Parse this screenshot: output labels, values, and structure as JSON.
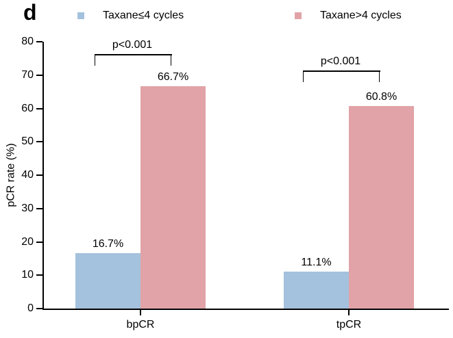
{
  "panel_label": "d",
  "chart_data": {
    "type": "bar",
    "title": "",
    "categories": [
      "bpCR",
      "tpCR"
    ],
    "series": [
      {
        "name": "Taxane≤4 cycles",
        "color": "#a4c1dd",
        "values": [
          16.7,
          11.1
        ],
        "labels": [
          "16.7%",
          "11.1%"
        ]
      },
      {
        "name": "Taxane>4 cycles",
        "color": "#e1a3a7",
        "values": [
          66.7,
          60.8
        ],
        "labels": [
          "66.7%",
          "60.8%"
        ]
      }
    ],
    "xlabel": "",
    "ylabel": "pCR rate (%)",
    "ylim": [
      0,
      80
    ],
    "yticks": [
      0,
      10,
      20,
      30,
      40,
      50,
      60,
      70,
      80
    ],
    "grid": false,
    "legend_position": "top",
    "significance": [
      {
        "category": "bpCR",
        "label": "p<0.001"
      },
      {
        "category": "tpCR",
        "label": "p<0.001"
      }
    ]
  },
  "colors": {
    "axis": "#000000",
    "text": "#000000",
    "background": "#ffffff"
  }
}
